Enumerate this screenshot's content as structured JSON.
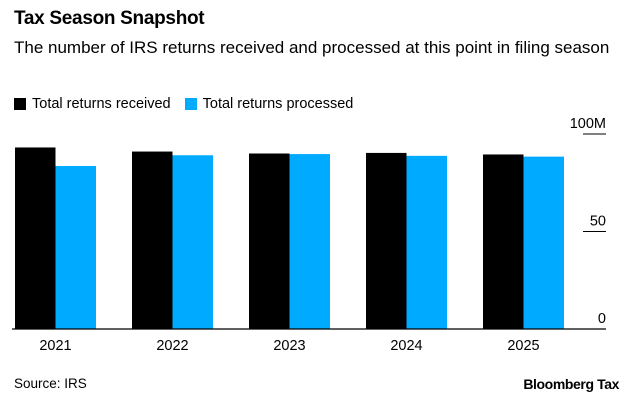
{
  "title": "Tax Season Snapshot",
  "subtitle": "The number of IRS returns received and processed at this point in filing season",
  "source": "Source: IRS",
  "brand": "Bloomberg Tax",
  "colors": {
    "received": "#000000",
    "processed": "#00aaff"
  },
  "chart_data": {
    "type": "bar",
    "title": "Tax Season Snapshot",
    "categories": [
      "2021",
      "2022",
      "2023",
      "2024",
      "2025"
    ],
    "series": [
      {
        "name": "Total returns received",
        "values": [
          93.1,
          91.0,
          90.0,
          90.3,
          89.5
        ]
      },
      {
        "name": "Total returns processed",
        "values": [
          83.6,
          89.1,
          89.7,
          88.8,
          88.4
        ]
      }
    ],
    "yticks": [
      {
        "value": 0,
        "label": "0"
      },
      {
        "value": 50,
        "label": "50"
      },
      {
        "value": 100,
        "label": "100M"
      }
    ],
    "ylim": [
      0,
      100
    ],
    "xlabel": "",
    "ylabel": "",
    "legend": "top-left",
    "grid": false
  }
}
